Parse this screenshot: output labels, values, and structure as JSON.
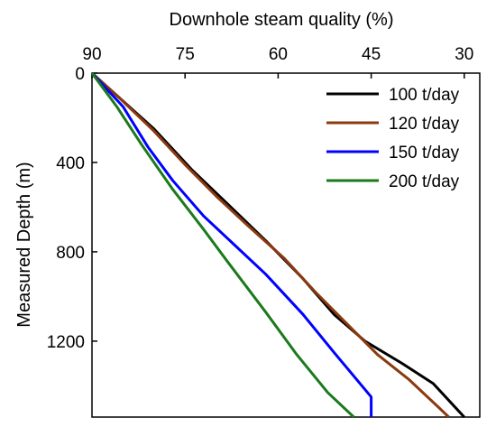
{
  "chart_data": {
    "type": "line",
    "xlabel": "Downhole steam quality (%)",
    "ylabel": "Measured Depth (m)",
    "xlim": [
      90,
      27.5
    ],
    "ylim": [
      0,
      1540
    ],
    "x_axis_position": "top",
    "y_axis_inverted": true,
    "x_ticks": [
      90,
      75,
      60,
      45,
      30
    ],
    "y_ticks": [
      0,
      400,
      800,
      1200
    ],
    "grid": false,
    "legend_placement": "top-right",
    "series": [
      {
        "name": "100 t/day",
        "color": "#000000",
        "x": [
          90,
          86,
          80,
          74,
          68,
          62,
          56,
          51,
          46,
          40,
          35,
          30
        ],
        "y": [
          0,
          100,
          250,
          430,
          590,
          750,
          920,
          1080,
          1200,
          1300,
          1390,
          1540
        ]
      },
      {
        "name": "120 t/day",
        "color": "#8B3A0F",
        "x": [
          90,
          86,
          80,
          75,
          70,
          65,
          59,
          54,
          49,
          44,
          39,
          34,
          32.5
        ],
        "y": [
          0,
          100,
          260,
          410,
          550,
          680,
          830,
          980,
          1120,
          1260,
          1370,
          1500,
          1540
        ]
      },
      {
        "name": "150 t/day",
        "color": "#0000FF",
        "x": [
          90,
          85,
          81,
          77,
          72,
          67,
          62,
          56,
          51,
          45,
          45
        ],
        "y": [
          0,
          150,
          330,
          480,
          640,
          770,
          900,
          1080,
          1250,
          1450,
          1540
        ]
      },
      {
        "name": "200 t/day",
        "color": "#1B7A1B",
        "x": [
          90,
          86,
          82,
          77,
          72,
          68,
          62,
          57,
          52,
          47.8
        ],
        "y": [
          0,
          150,
          320,
          520,
          700,
          850,
          1070,
          1260,
          1430,
          1540
        ]
      }
    ]
  }
}
